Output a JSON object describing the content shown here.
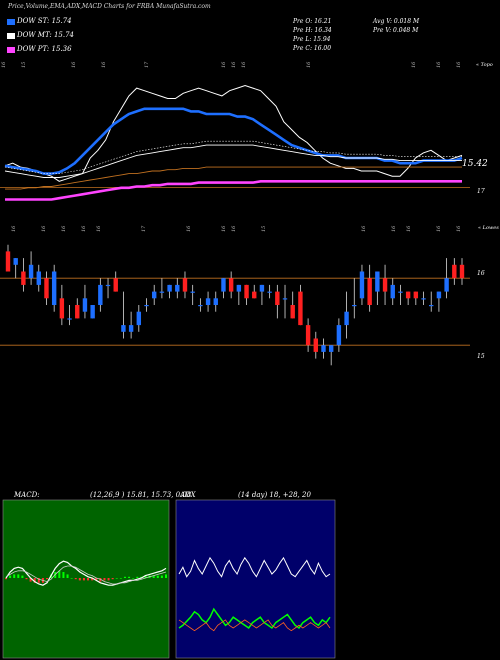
{
  "header": {
    "title": "Price,Volume,EMA,ADX,MACD Charts for FRBA MunafaSutra.com"
  },
  "legend": [
    {
      "label": "DOW ST: 15.74",
      "color": "#1e6fff"
    },
    {
      "label": "DOW MT: 15.74",
      "color": "#ffffff"
    },
    {
      "label": "DOW PT: 15.36",
      "color": "#ff44ff"
    }
  ],
  "ohlc": {
    "open": "Pre O: 16.21",
    "high": "Pre H: 16.34",
    "low": "Pre L: 15.94",
    "close": "Pre C: 16.00",
    "avg_vol": "Avg V: 0.018 M",
    "pre_vol": "Pre V: 0.048 M"
  },
  "ema_panel": {
    "corner_label": "« Topo",
    "last_price_label": "15.42",
    "ref_level_label": "17",
    "date_labels_top": [
      "16",
      "15",
      "16",
      "16",
      "17",
      "16",
      "16",
      "16",
      "16",
      "16",
      "16",
      "16"
    ],
    "date_labels_bottom": [
      "16",
      "16",
      "16",
      "16",
      "16",
      "17",
      "16",
      "16",
      "16",
      "15",
      "16",
      "16",
      "16",
      "16",
      "16"
    ]
  },
  "candle_panel": {
    "corner_label": "« Lowes",
    "levels": [
      "16",
      "15"
    ]
  },
  "macd_panel": {
    "title": "MACD:",
    "values": "(12,26,9 ) 15.81, 15.73, 0.08"
  },
  "adx_panel": {
    "title": "ADX",
    "values": "(14 day) 18, +28, 20"
  },
  "colors": {
    "up": "#1e6fff",
    "down": "#ff2020",
    "ema_short": "#1e6fff",
    "ema_mid": "#ffffff",
    "ema_long": "#ff44ff",
    "ema_brown": "#c07020",
    "level_line": "#c07020",
    "macd_bg": "#006400",
    "adx_bg": "#00006a"
  },
  "chart_data": [
    {
      "type": "line",
      "name": "price-ema-panel",
      "x": [
        0,
        1,
        2,
        3,
        4,
        5,
        6,
        7,
        8,
        9,
        10,
        11,
        12,
        13,
        14,
        15,
        16,
        17,
        18,
        19,
        20,
        21,
        22,
        23,
        24,
        25,
        26,
        27,
        28,
        29,
        30,
        31,
        32,
        33,
        34,
        35,
        36,
        37,
        38,
        39,
        40,
        41,
        42,
        43,
        44,
        45,
        46,
        47,
        48,
        49,
        50,
        51,
        52,
        53,
        54,
        55,
        56,
        57,
        58,
        59
      ],
      "series": [
        {
          "values": [
            15.9,
            16.0,
            15.85,
            15.8,
            15.7,
            15.6,
            15.5,
            15.3,
            15.4,
            15.5,
            15.6,
            16.2,
            16.5,
            16.9,
            17.6,
            18.1,
            18.6,
            18.9,
            18.8,
            18.7,
            18.6,
            18.5,
            18.5,
            18.7,
            18.8,
            18.9,
            18.8,
            18.7,
            18.6,
            18.8,
            18.9,
            19.0,
            18.9,
            18.8,
            18.5,
            18.2,
            17.6,
            17.3,
            17.0,
            16.8,
            16.5,
            16.2,
            16.0,
            15.9,
            15.8,
            15.8,
            15.7,
            15.7,
            15.7,
            15.6,
            15.5,
            15.5,
            15.8,
            16.2,
            16.4,
            16.5,
            16.3,
            16.1,
            16.2,
            16.3
          ]
        },
        {
          "values": [
            15.9,
            15.85,
            15.8,
            15.75,
            15.7,
            15.6,
            15.6,
            15.65,
            15.8,
            16.0,
            16.3,
            16.6,
            16.9,
            17.2,
            17.5,
            17.7,
            17.9,
            18.0,
            18.1,
            18.1,
            18.1,
            18.1,
            18.1,
            18.1,
            18.0,
            18.0,
            17.9,
            17.9,
            17.9,
            17.9,
            17.8,
            17.8,
            17.7,
            17.5,
            17.3,
            17.1,
            16.9,
            16.7,
            16.6,
            16.5,
            16.4,
            16.3,
            16.3,
            16.3,
            16.2,
            16.2,
            16.2,
            16.2,
            16.2,
            16.1,
            16.1,
            16.0,
            16.0,
            16.0,
            16.1,
            16.1,
            16.1,
            16.1,
            16.1,
            16.2
          ]
        },
        {
          "values": [
            15.7,
            15.65,
            15.6,
            15.55,
            15.5,
            15.45,
            15.45,
            15.45,
            15.5,
            15.55,
            15.6,
            15.7,
            15.8,
            15.9,
            16.0,
            16.1,
            16.2,
            16.3,
            16.35,
            16.4,
            16.45,
            16.5,
            16.55,
            16.6,
            16.6,
            16.65,
            16.7,
            16.7,
            16.7,
            16.7,
            16.7,
            16.7,
            16.7,
            16.65,
            16.6,
            16.55,
            16.5,
            16.45,
            16.4,
            16.35,
            16.3,
            16.3,
            16.25,
            16.25,
            16.2,
            16.2,
            16.2,
            16.2,
            16.2,
            16.15,
            16.15,
            16.1,
            16.1,
            16.1,
            16.1,
            16.1,
            16.1,
            16.1,
            16.1,
            16.1
          ]
        },
        {
          "values": [
            15.0,
            15.0,
            15.0,
            15.05,
            15.05,
            15.1,
            15.1,
            15.15,
            15.2,
            15.25,
            15.3,
            15.35,
            15.4,
            15.45,
            15.5,
            15.55,
            15.6,
            15.6,
            15.65,
            15.7,
            15.7,
            15.75,
            15.75,
            15.8,
            15.8,
            15.8,
            15.85,
            15.85,
            15.85,
            15.85,
            15.85,
            15.85,
            15.85,
            15.85,
            15.85,
            15.85,
            15.85,
            15.85,
            15.85,
            15.85,
            15.85,
            15.85,
            15.85,
            15.85,
            15.85,
            15.85,
            15.85,
            15.85,
            15.85,
            15.85,
            15.85,
            15.85,
            15.85,
            15.85,
            15.85,
            15.85,
            15.85,
            15.85,
            15.85,
            15.85
          ]
        },
        {
          "values": [
            14.6,
            14.6,
            14.6,
            14.6,
            14.6,
            14.6,
            14.6,
            14.65,
            14.7,
            14.75,
            14.8,
            14.85,
            14.9,
            14.95,
            15.0,
            15.05,
            15.05,
            15.1,
            15.1,
            15.15,
            15.15,
            15.2,
            15.2,
            15.2,
            15.2,
            15.25,
            15.25,
            15.25,
            15.25,
            15.25,
            15.25,
            15.25,
            15.25,
            15.3,
            15.3,
            15.3,
            15.3,
            15.3,
            15.3,
            15.3,
            15.3,
            15.3,
            15.3,
            15.3,
            15.3,
            15.3,
            15.3,
            15.3,
            15.3,
            15.3,
            15.3,
            15.3,
            15.3,
            15.3,
            15.3,
            15.3,
            15.3,
            15.3,
            15.3,
            15.3
          ]
        }
      ]
    },
    {
      "type": "candlestick",
      "name": "candle-panel",
      "x": [
        0,
        1,
        2,
        3,
        4,
        5,
        6,
        7,
        8,
        9,
        10,
        11,
        12,
        13,
        14,
        15,
        16,
        17,
        18,
        19,
        20,
        21,
        22,
        23,
        24,
        25,
        26,
        27,
        28,
        29,
        30,
        31,
        32,
        33,
        34,
        35,
        36,
        37,
        38,
        39,
        40,
        41,
        42,
        43,
        44,
        45,
        46,
        47,
        48,
        49,
        50,
        51,
        52,
        53,
        54,
        55,
        56,
        57,
        58,
        59
      ],
      "candles": [
        {
          "o": 16.4,
          "h": 16.5,
          "l": 16.1,
          "c": 16.1
        },
        {
          "o": 16.2,
          "h": 16.3,
          "l": 16.0,
          "c": 16.3
        },
        {
          "o": 16.1,
          "h": 16.3,
          "l": 15.8,
          "c": 15.9
        },
        {
          "o": 16.0,
          "h": 16.4,
          "l": 15.9,
          "c": 16.2
        },
        {
          "o": 15.9,
          "h": 16.2,
          "l": 15.8,
          "c": 16.1
        },
        {
          "o": 16.0,
          "h": 16.1,
          "l": 15.6,
          "c": 15.7
        },
        {
          "o": 15.6,
          "h": 16.2,
          "l": 15.5,
          "c": 16.1
        },
        {
          "o": 15.7,
          "h": 15.9,
          "l": 15.3,
          "c": 15.4
        },
        {
          "o": 15.4,
          "h": 15.6,
          "l": 15.3,
          "c": 15.4
        },
        {
          "o": 15.6,
          "h": 15.7,
          "l": 15.4,
          "c": 15.4
        },
        {
          "o": 15.5,
          "h": 15.9,
          "l": 15.4,
          "c": 15.7
        },
        {
          "o": 15.4,
          "h": 15.6,
          "l": 15.4,
          "c": 15.6
        },
        {
          "o": 15.6,
          "h": 16.0,
          "l": 15.5,
          "c": 15.9
        },
        {
          "o": 15.9,
          "h": 16.0,
          "l": 15.7,
          "c": 15.9
        },
        {
          "o": 16.0,
          "h": 16.1,
          "l": 15.8,
          "c": 15.8
        },
        {
          "o": 15.2,
          "h": 15.8,
          "l": 15.1,
          "c": 15.3
        },
        {
          "o": 15.2,
          "h": 15.5,
          "l": 15.1,
          "c": 15.3
        },
        {
          "o": 15.3,
          "h": 15.6,
          "l": 15.2,
          "c": 15.5
        },
        {
          "o": 15.6,
          "h": 15.7,
          "l": 15.5,
          "c": 15.6
        },
        {
          "o": 15.7,
          "h": 15.9,
          "l": 15.6,
          "c": 15.8
        },
        {
          "o": 15.8,
          "h": 16.0,
          "l": 15.7,
          "c": 15.8
        },
        {
          "o": 15.8,
          "h": 15.9,
          "l": 15.7,
          "c": 15.9
        },
        {
          "o": 15.8,
          "h": 16.0,
          "l": 15.7,
          "c": 15.9
        },
        {
          "o": 16.0,
          "h": 16.1,
          "l": 15.7,
          "c": 15.8
        },
        {
          "o": 15.8,
          "h": 15.9,
          "l": 15.6,
          "c": 15.8
        },
        {
          "o": 15.6,
          "h": 15.7,
          "l": 15.5,
          "c": 15.6
        },
        {
          "o": 15.6,
          "h": 15.8,
          "l": 15.5,
          "c": 15.7
        },
        {
          "o": 15.6,
          "h": 15.8,
          "l": 15.5,
          "c": 15.7
        },
        {
          "o": 15.8,
          "h": 16.0,
          "l": 15.7,
          "c": 16.0
        },
        {
          "o": 16.0,
          "h": 16.1,
          "l": 15.7,
          "c": 15.8
        },
        {
          "o": 15.8,
          "h": 15.9,
          "l": 15.6,
          "c": 15.9
        },
        {
          "o": 15.9,
          "h": 15.9,
          "l": 15.6,
          "c": 15.7
        },
        {
          "o": 15.8,
          "h": 15.9,
          "l": 15.7,
          "c": 15.7
        },
        {
          "o": 15.8,
          "h": 15.9,
          "l": 15.6,
          "c": 15.9
        },
        {
          "o": 15.8,
          "h": 15.9,
          "l": 15.7,
          "c": 15.8
        },
        {
          "o": 15.8,
          "h": 15.9,
          "l": 15.4,
          "c": 15.6
        },
        {
          "o": 15.7,
          "h": 15.9,
          "l": 15.4,
          "c": 15.7
        },
        {
          "o": 15.6,
          "h": 15.8,
          "l": 15.4,
          "c": 15.4
        },
        {
          "o": 15.8,
          "h": 15.9,
          "l": 15.3,
          "c": 15.3
        },
        {
          "o": 15.3,
          "h": 15.4,
          "l": 14.9,
          "c": 15.0
        },
        {
          "o": 15.1,
          "h": 15.2,
          "l": 14.8,
          "c": 14.9
        },
        {
          "o": 14.9,
          "h": 15.1,
          "l": 14.8,
          "c": 15.0
        },
        {
          "o": 14.9,
          "h": 15.0,
          "l": 14.7,
          "c": 15.0
        },
        {
          "o": 15.0,
          "h": 15.4,
          "l": 14.9,
          "c": 15.3
        },
        {
          "o": 15.3,
          "h": 15.8,
          "l": 15.1,
          "c": 15.5
        },
        {
          "o": 15.6,
          "h": 16.0,
          "l": 15.4,
          "c": 15.6
        },
        {
          "o": 15.7,
          "h": 16.2,
          "l": 15.6,
          "c": 16.1
        },
        {
          "o": 16.0,
          "h": 16.2,
          "l": 15.5,
          "c": 15.6
        },
        {
          "o": 15.8,
          "h": 16.1,
          "l": 15.6,
          "c": 16.1
        },
        {
          "o": 16.0,
          "h": 16.2,
          "l": 15.6,
          "c": 15.8
        },
        {
          "o": 15.7,
          "h": 16.0,
          "l": 15.6,
          "c": 15.9
        },
        {
          "o": 15.8,
          "h": 15.9,
          "l": 15.6,
          "c": 15.8
        },
        {
          "o": 15.8,
          "h": 15.8,
          "l": 15.6,
          "c": 15.7
        },
        {
          "o": 15.8,
          "h": 15.8,
          "l": 15.6,
          "c": 15.7
        },
        {
          "o": 15.7,
          "h": 15.8,
          "l": 15.6,
          "c": 15.7
        },
        {
          "o": 15.6,
          "h": 15.8,
          "l": 15.5,
          "c": 15.6
        },
        {
          "o": 15.7,
          "h": 15.8,
          "l": 15.5,
          "c": 15.8
        },
        {
          "o": 15.8,
          "h": 16.3,
          "l": 15.7,
          "c": 16.0
        },
        {
          "o": 16.2,
          "h": 16.3,
          "l": 15.9,
          "c": 16.0
        },
        {
          "o": 16.2,
          "h": 16.3,
          "l": 15.9,
          "c": 16.0
        }
      ],
      "levels": [
        16,
        15
      ]
    },
    {
      "type": "line",
      "name": "macd-panel",
      "series": [
        {
          "values": [
            0.0,
            0.05,
            0.08,
            0.09,
            0.08,
            0.04,
            0.0,
            -0.03,
            -0.05,
            -0.06,
            -0.04,
            0.02,
            0.08,
            0.12,
            0.14,
            0.13,
            0.1,
            0.08,
            0.05,
            0.03,
            0.01,
            0.0,
            -0.02,
            -0.04,
            -0.05,
            -0.06,
            -0.06,
            -0.05,
            -0.04,
            -0.03,
            -0.02,
            -0.02,
            -0.01,
            0.0,
            0.02,
            0.03,
            0.04,
            0.05,
            0.06,
            0.08
          ]
        },
        {
          "values": [
            0.01,
            0.03,
            0.05,
            0.06,
            0.06,
            0.05,
            0.03,
            0.01,
            -0.01,
            -0.02,
            -0.03,
            -0.01,
            0.03,
            0.06,
            0.09,
            0.1,
            0.1,
            0.09,
            0.07,
            0.05,
            0.03,
            0.02,
            0.0,
            -0.01,
            -0.03,
            -0.04,
            -0.05,
            -0.05,
            -0.04,
            -0.04,
            -0.03,
            -0.02,
            -0.02,
            -0.01,
            0.0,
            0.01,
            0.02,
            0.03,
            0.04,
            0.05
          ]
        }
      ]
    },
    {
      "type": "line",
      "name": "adx-panel",
      "series": [
        {
          "values": [
            60,
            65,
            58,
            62,
            70,
            64,
            60,
            66,
            72,
            68,
            62,
            58,
            66,
            70,
            64,
            60,
            67,
            72,
            68,
            62,
            58,
            64,
            70,
            65,
            60,
            63,
            68,
            72,
            66,
            60,
            58,
            62,
            66,
            70,
            64,
            60,
            68,
            62,
            58,
            60
          ]
        },
        {
          "values": [
            20,
            22,
            25,
            28,
            32,
            30,
            26,
            24,
            28,
            34,
            30,
            26,
            22,
            24,
            28,
            26,
            24,
            22,
            20,
            24,
            26,
            28,
            24,
            22,
            20,
            24,
            26,
            28,
            30,
            26,
            22,
            20,
            24,
            26,
            28,
            24,
            22,
            26,
            24,
            28
          ]
        },
        {
          "values": [
            26,
            24,
            22,
            20,
            18,
            20,
            22,
            24,
            20,
            18,
            22,
            24,
            26,
            22,
            20,
            22,
            24,
            26,
            24,
            22,
            20,
            22,
            24,
            26,
            22,
            20,
            22,
            24,
            20,
            18,
            20,
            22,
            20,
            22,
            24,
            22,
            20,
            22,
            24,
            20
          ]
        }
      ]
    }
  ]
}
